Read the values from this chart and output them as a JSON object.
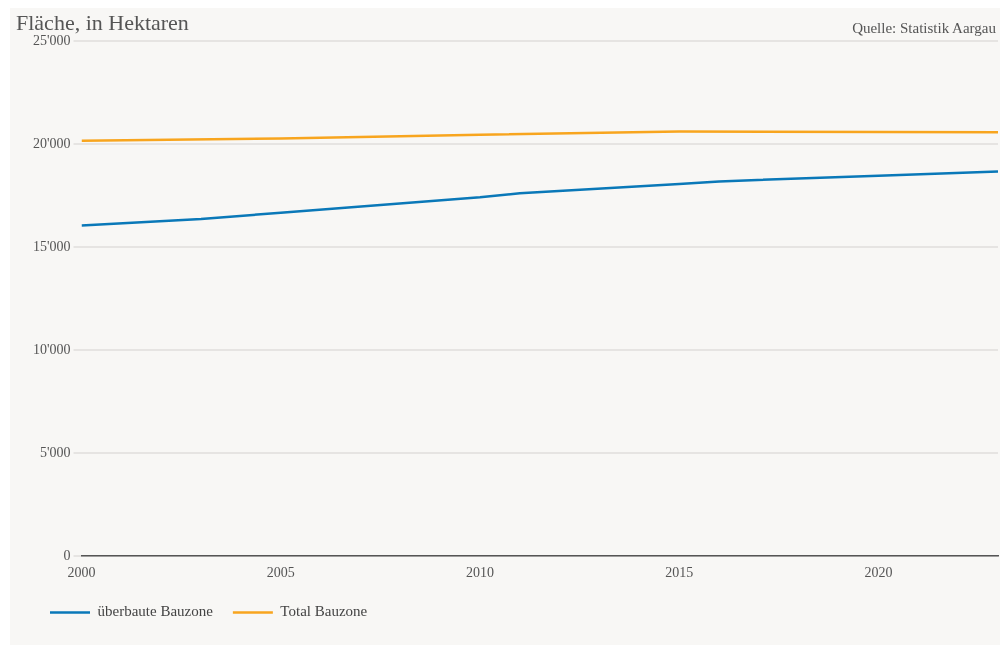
{
  "chart_data": {
    "type": "line",
    "title": "Fläche, in Hektaren",
    "annotations": [
      "Quelle: Statistik Aargau"
    ],
    "series": [
      {
        "name": "überbaute Bauzone",
        "color": "#0a78b8",
        "x": [
          2000,
          2003,
          2005,
          2010,
          2011,
          2015,
          2016,
          2020,
          2023
        ],
        "values": [
          16060,
          16380,
          16680,
          17430,
          17630,
          18080,
          18200,
          18480,
          18680
        ]
      },
      {
        "name": "Total Bauzone",
        "color": "#f8a51e",
        "x": [
          2000,
          2005,
          2010,
          2015,
          2023
        ],
        "values": [
          20170,
          20290,
          20470,
          20620,
          20590
        ]
      }
    ],
    "xlim": [
      2000,
      2023
    ],
    "xticks": [
      2000,
      2005,
      2010,
      2015,
      2020
    ],
    "ylim": [
      0,
      25000
    ],
    "yticks": [
      {
        "value": 0,
        "label": "0"
      },
      {
        "value": 5000,
        "label": "5'000"
      },
      {
        "value": 10000,
        "label": "10'000"
      },
      {
        "value": 15000,
        "label": "15'000"
      },
      {
        "value": 20000,
        "label": "20'000"
      },
      {
        "value": 25000,
        "label": "25'000"
      }
    ],
    "grid": "y",
    "legend": "bottom left",
    "marker": "none",
    "line_style": "solid"
  }
}
